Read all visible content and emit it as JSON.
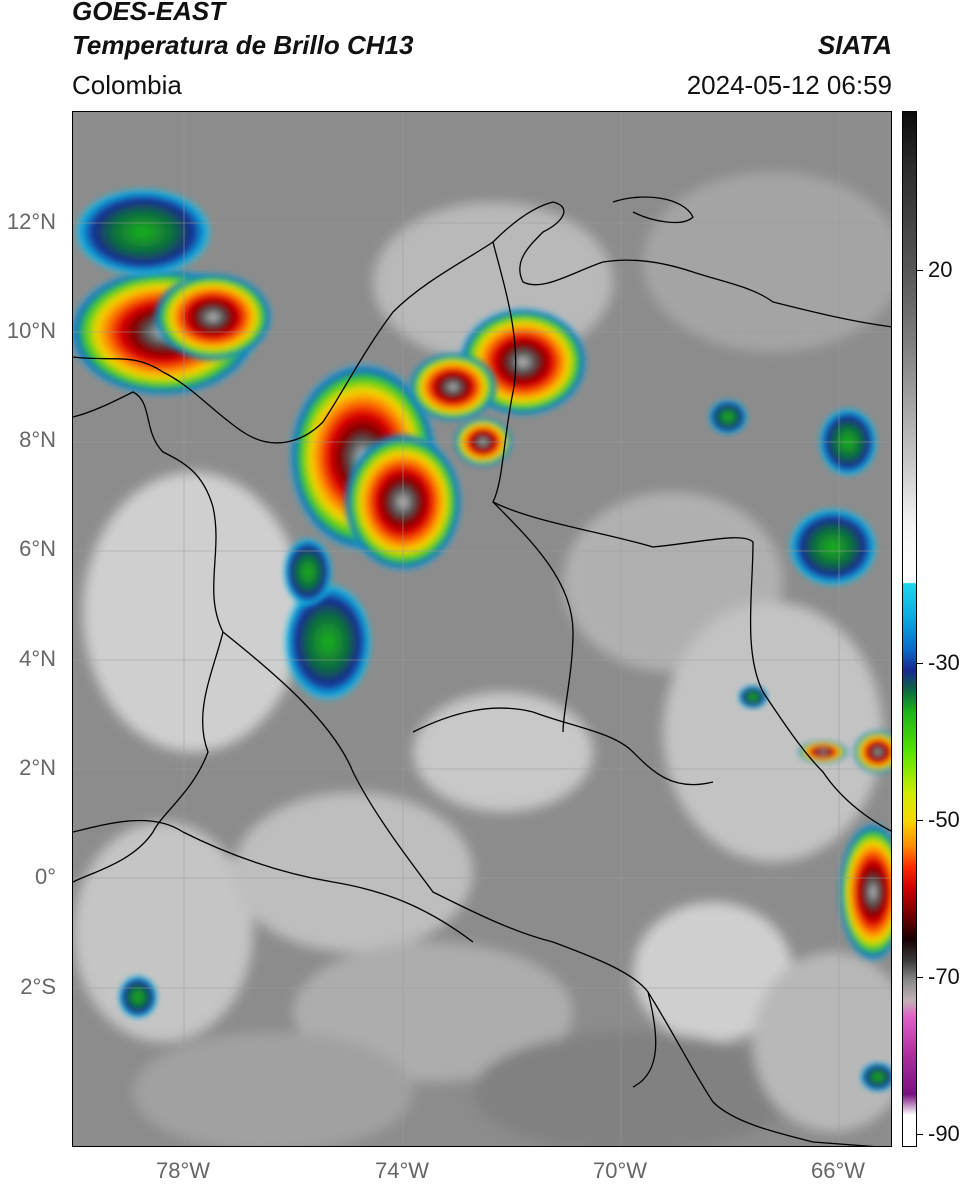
{
  "header": {
    "satellite": "GOES-EAST",
    "product": "Temperatura de Brillo CH13",
    "org": "SIATA",
    "region": "Colombia",
    "timestamp": "2024-05-12 06:59"
  },
  "map": {
    "lat_ticks": [
      "12°N",
      "10°N",
      "8°N",
      "6°N",
      "4°N",
      "2°N",
      "0°",
      "2°S"
    ],
    "lon_ticks": [
      "78°W",
      "74°W",
      "70°W",
      "66°W"
    ],
    "background_color": "#8a8a8a",
    "border_color": "#000000"
  },
  "colorbar": {
    "ticks": [
      "20",
      "-30",
      "-50",
      "-70",
      "-90"
    ],
    "palette": [
      "#0a0a0a",
      "#ffffff",
      "#1ed8ee",
      "#1a2890",
      "#1ab41a",
      "#f4d800",
      "#ff2a00",
      "#7a0000",
      "#e060c8",
      "#7a1080"
    ]
  }
}
